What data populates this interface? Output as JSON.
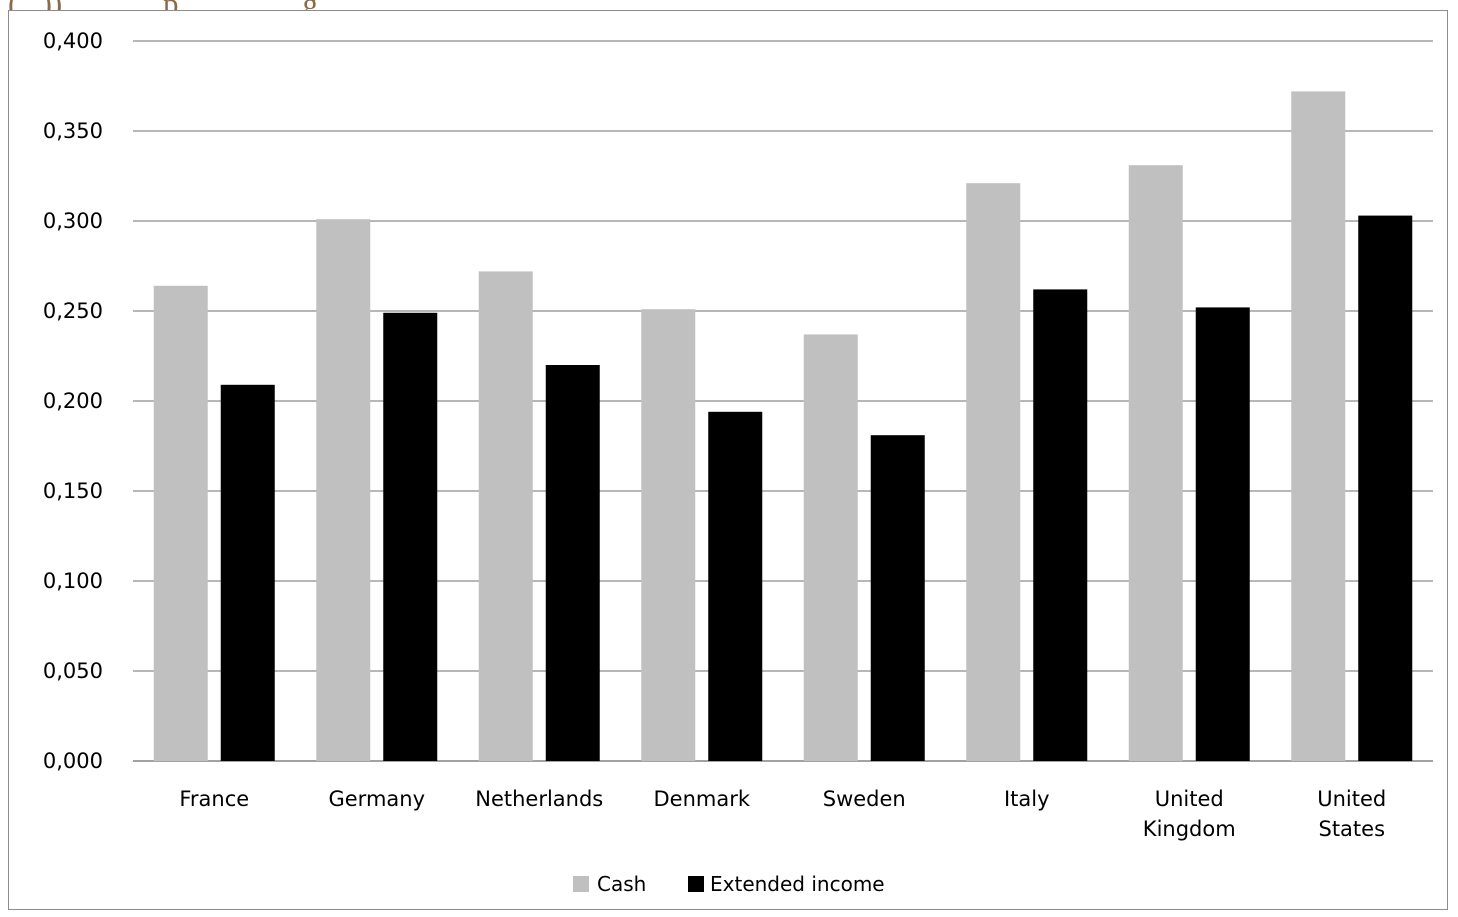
{
  "page": {
    "top_text": "(...)), ... ... ...p ... ... ... ...g"
  },
  "chart_data": {
    "type": "bar",
    "title": "",
    "xlabel": "",
    "ylabel": "",
    "ylim": [
      0,
      0.4
    ],
    "ytick_step": 0.05,
    "ytick_labels": [
      "0,000",
      "0,050",
      "0,100",
      "0,150",
      "0,200",
      "0,250",
      "0,300",
      "0,350",
      "0,400"
    ],
    "categories": [
      "France",
      "Germany",
      "Netherlands",
      "Denmark",
      "Sweden",
      "Italy",
      "United Kingdom",
      "United States"
    ],
    "series": [
      {
        "name": "Cash",
        "color": "#c0c0c0",
        "values": [
          0.264,
          0.301,
          0.272,
          0.251,
          0.237,
          0.321,
          0.331,
          0.372
        ]
      },
      {
        "name": "Extended income",
        "color": "#000000",
        "values": [
          0.209,
          0.249,
          0.22,
          0.194,
          0.181,
          0.262,
          0.252,
          0.303
        ]
      }
    ],
    "grid": true,
    "legend_position": "bottom"
  }
}
